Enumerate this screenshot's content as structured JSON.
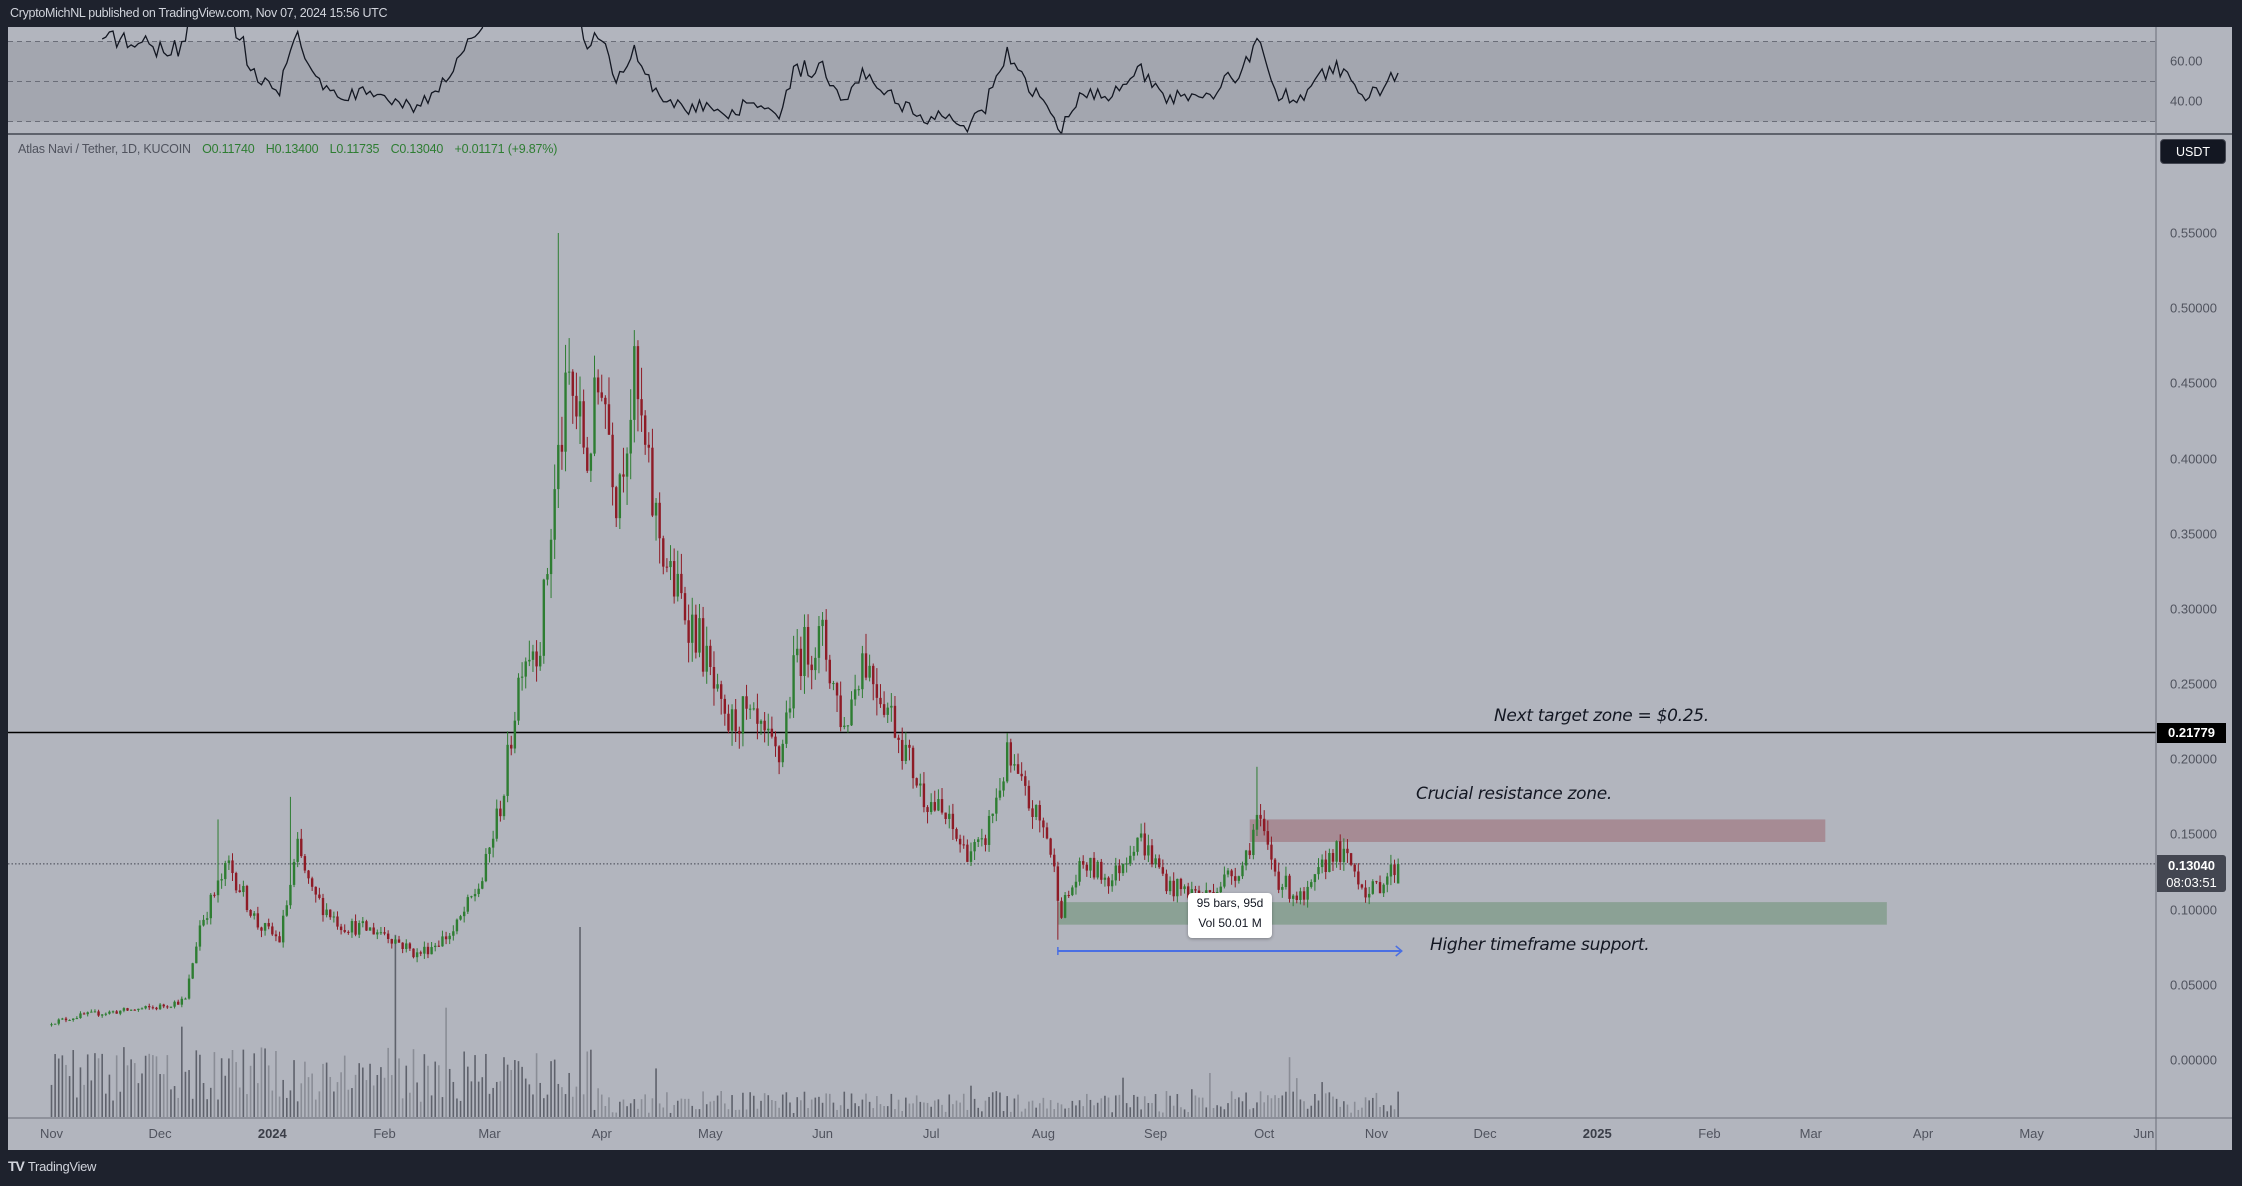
{
  "header": {
    "published": "CryptoMichNL published on TradingView.com, Nov 07, 2024 15:56 UTC"
  },
  "legend": {
    "symbol": "Atlas Navi / Tether, 1D, KUCOIN",
    "open": "O0.11740",
    "high": "H0.13400",
    "low": "L0.11735",
    "close": "C0.13040",
    "change": "+0.01171 (+9.87%)"
  },
  "price_axis": {
    "currency": "USDT",
    "level_label": "0.21779",
    "last_price": "0.13040",
    "countdown": "08:03:51"
  },
  "rsi_axis": {
    "ticks": [
      "60.00",
      "40.00"
    ]
  },
  "tooltip": {
    "bars": "95 bars, 95d",
    "volume": "Vol 50.01 M"
  },
  "annotations": {
    "target": "Next target zone = $0.25.",
    "resistance": "Crucial resistance zone.",
    "support": "Higher timeframe support."
  },
  "footer": {
    "brand": "TradingView"
  },
  "colors": {
    "up": "#2e7d32",
    "down": "#8e1b26",
    "resistance_zone": "#a68b94",
    "support_zone": "#8ba195",
    "arrow": "#4a6fe3",
    "pane": "#b2b5be"
  },
  "chart_data": {
    "type": "candlestick",
    "title": "Atlas Navi / Tether, 1D, KUCOIN",
    "x_unit": "days since 2023-11-01",
    "last_day": 372,
    "ohlc": {
      "open": 0.1174,
      "high": 0.134,
      "low": 0.11735,
      "close": 0.1304
    },
    "waypoints": [
      [
        0,
        0.025
      ],
      [
        9,
        0.03
      ],
      [
        29,
        0.035
      ],
      [
        37,
        0.04
      ],
      [
        41,
        0.09
      ],
      [
        49,
        0.13
      ],
      [
        57,
        0.09
      ],
      [
        63,
        0.08
      ],
      [
        68,
        0.14
      ],
      [
        72,
        0.11
      ],
      [
        80,
        0.09
      ],
      [
        92,
        0.085
      ],
      [
        101,
        0.07
      ],
      [
        111,
        0.085
      ],
      [
        119,
        0.12
      ],
      [
        125,
        0.18
      ],
      [
        130,
        0.27
      ],
      [
        135,
        0.28
      ],
      [
        140,
        0.4
      ],
      [
        143,
        0.45
      ],
      [
        148,
        0.4
      ],
      [
        152,
        0.46
      ],
      [
        156,
        0.38
      ],
      [
        161,
        0.45
      ],
      [
        166,
        0.37
      ],
      [
        171,
        0.32
      ],
      [
        179,
        0.28
      ],
      [
        186,
        0.22
      ],
      [
        191,
        0.23
      ],
      [
        201,
        0.2
      ],
      [
        206,
        0.27
      ],
      [
        213,
        0.28
      ],
      [
        219,
        0.22
      ],
      [
        224,
        0.27
      ],
      [
        232,
        0.23
      ],
      [
        240,
        0.18
      ],
      [
        247,
        0.16
      ],
      [
        252,
        0.14
      ],
      [
        257,
        0.14
      ],
      [
        264,
        0.2
      ],
      [
        270,
        0.17
      ],
      [
        275,
        0.15
      ],
      [
        279,
        0.1
      ],
      [
        285,
        0.13
      ],
      [
        293,
        0.12
      ],
      [
        300,
        0.15
      ],
      [
        309,
        0.115
      ],
      [
        319,
        0.11
      ],
      [
        329,
        0.13
      ],
      [
        333,
        0.16
      ],
      [
        339,
        0.12
      ],
      [
        346,
        0.105
      ],
      [
        354,
        0.14
      ],
      [
        359,
        0.13
      ],
      [
        364,
        0.11
      ],
      [
        372,
        0.1304
      ]
    ],
    "spike_highs": [
      [
        140,
        0.55
      ],
      [
        66,
        0.175
      ],
      [
        333,
        0.195
      ],
      [
        46,
        0.16
      ]
    ],
    "spike_lows": [
      [
        278,
        0.08
      ]
    ],
    "yticks": [
      {
        "v": 0.55,
        "label": "0.55000"
      },
      {
        "v": 0.5,
        "label": "0.50000"
      },
      {
        "v": 0.45,
        "label": "0.45000"
      },
      {
        "v": 0.4,
        "label": "0.40000"
      },
      {
        "v": 0.35,
        "label": "0.35000"
      },
      {
        "v": 0.3,
        "label": "0.30000"
      },
      {
        "v": 0.25,
        "label": "0.25000"
      },
      {
        "v": 0.2,
        "label": "0.20000"
      },
      {
        "v": 0.15,
        "label": "0.15000"
      },
      {
        "v": 0.1,
        "label": "0.10000"
      },
      {
        "v": 0.05,
        "label": "0.05000"
      },
      {
        "v": 0.0,
        "label": "0.00000"
      }
    ],
    "xticks": [
      {
        "d": 0,
        "label": "Nov"
      },
      {
        "d": 30,
        "label": "Dec"
      },
      {
        "d": 61,
        "label": "2024",
        "bold": true
      },
      {
        "d": 92,
        "label": "Feb"
      },
      {
        "d": 121,
        "label": "Mar"
      },
      {
        "d": 152,
        "label": "Apr"
      },
      {
        "d": 182,
        "label": "May"
      },
      {
        "d": 213,
        "label": "Jun"
      },
      {
        "d": 243,
        "label": "Jul"
      },
      {
        "d": 274,
        "label": "Aug"
      },
      {
        "d": 305,
        "label": "Sep"
      },
      {
        "d": 335,
        "label": "Oct"
      },
      {
        "d": 366,
        "label": "Nov"
      },
      {
        "d": 396,
        "label": "Dec"
      },
      {
        "d": 427,
        "label": "2025",
        "bold": true
      },
      {
        "d": 458,
        "label": "Feb"
      },
      {
        "d": 486,
        "label": "Mar"
      },
      {
        "d": 517,
        "label": "Apr"
      },
      {
        "d": 547,
        "label": "May"
      },
      {
        "d": 578,
        "label": "Jun"
      }
    ],
    "horizontal_level": 0.21779,
    "resistance_zone": {
      "from_day": 331,
      "to_day": 490,
      "low": 0.145,
      "high": 0.16
    },
    "support_zone": {
      "from_day": 278,
      "to_day": 507,
      "low": 0.09,
      "high": 0.105
    },
    "range_arrow": {
      "from_day": 278,
      "to_day": 373,
      "bars": 95
    },
    "rsi": {
      "period": 14,
      "levels": [
        70,
        50,
        30
      ],
      "ylim": [
        10,
        85
      ]
    }
  }
}
